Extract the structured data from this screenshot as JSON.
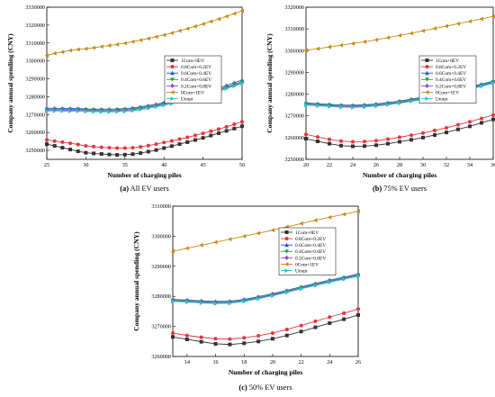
{
  "chart_data": [
    {
      "type": "line",
      "caption_letter": "(a)",
      "caption_text": "All EV users",
      "xlabel": "Number of charging piles",
      "ylabel": "Company annual spending (CNY)",
      "xlim": [
        25,
        50
      ],
      "ylim": [
        3245000,
        3330000
      ],
      "xticks": [
        25,
        30,
        35,
        40,
        45,
        50
      ],
      "yticks": [
        3250000,
        3260000,
        3270000,
        3280000,
        3290000,
        3300000,
        3310000,
        3320000,
        3330000
      ],
      "x": [
        25,
        26,
        27,
        28,
        29,
        30,
        31,
        32,
        33,
        34,
        35,
        36,
        37,
        38,
        39,
        40,
        41,
        42,
        43,
        44,
        45,
        46,
        47,
        48,
        49,
        50
      ],
      "series": [
        {
          "name": "1Com+0EV",
          "color": "#333333",
          "marker": "square",
          "values": [
            3253500,
            3252500,
            3251500,
            3250500,
            3249500,
            3248700,
            3248300,
            3248000,
            3247700,
            3247500,
            3247600,
            3247900,
            3248500,
            3249300,
            3250200,
            3251300,
            3252400,
            3253500,
            3254600,
            3255800,
            3257000,
            3258300,
            3259600,
            3260900,
            3262200,
            3263500
          ]
        },
        {
          "name": "0.8Com+0.2EV",
          "color": "#e8343a",
          "marker": "circle",
          "values": [
            3255900,
            3255200,
            3254600,
            3254000,
            3253300,
            3252500,
            3252100,
            3251700,
            3251500,
            3251300,
            3251300,
            3251500,
            3252000,
            3252700,
            3253500,
            3254400,
            3255300,
            3256300,
            3257300,
            3258400,
            3259500,
            3260700,
            3261900,
            3263200,
            3264600,
            3266000
          ]
        },
        {
          "name": "0.6Com+0.4EV",
          "color": "#2454d8",
          "marker": "triangle-up",
          "values": [
            3273500,
            3273500,
            3273400,
            3273400,
            3273400,
            3273100,
            3273000,
            3273000,
            3273000,
            3273100,
            3273300,
            3273700,
            3274300,
            3275000,
            3275800,
            3276700,
            3277700,
            3278700,
            3279800,
            3281000,
            3282200,
            3283500,
            3284900,
            3286300,
            3287800,
            3289300
          ]
        },
        {
          "name": "0.4Com+0.6EV",
          "color": "#1fa83a",
          "marker": "triangle-down",
          "values": [
            3273000,
            3273000,
            3273000,
            3272900,
            3272900,
            3272700,
            3272600,
            3272500,
            3272500,
            3272600,
            3272800,
            3273200,
            3273800,
            3274500,
            3275300,
            3276200,
            3277100,
            3278100,
            3279200,
            3280300,
            3281500,
            3282800,
            3284100,
            3285500,
            3286900,
            3288400
          ]
        },
        {
          "name": "0.2Com+0.8EV",
          "color": "#9b43c8",
          "marker": "diamond",
          "values": [
            3272500,
            3272500,
            3272500,
            3272400,
            3272400,
            3272200,
            3272100,
            3272000,
            3272000,
            3272100,
            3272300,
            3272700,
            3273300,
            3274000,
            3274800,
            3275700,
            3276600,
            3277600,
            3278700,
            3279800,
            3281000,
            3282300,
            3283600,
            3285000,
            3286400,
            3287900
          ]
        },
        {
          "name": "0Com+1EV",
          "color": "#c88a12",
          "marker": "triangle-left",
          "values": [
            3303000,
            3304200,
            3305000,
            3305800,
            3306400,
            3306800,
            3307300,
            3308000,
            3308600,
            3309200,
            3309900,
            3310700,
            3311600,
            3312500,
            3313500,
            3314500,
            3315600,
            3316800,
            3318000,
            3319300,
            3320600,
            3322000,
            3323400,
            3324900,
            3326400,
            3328000
          ]
        },
        {
          "name": "Unopt",
          "color": "#1ec8d2",
          "marker": "triangle-right",
          "values": [
            3272000,
            3272000,
            3272000,
            3271900,
            3271900,
            3271700,
            3271600,
            3271500,
            3271500,
            3271600,
            3271800,
            3272200,
            3272800,
            3273500,
            3274300,
            3275200,
            3276100,
            3277100,
            3278200,
            3279300,
            3280500,
            3281800,
            3283100,
            3284500,
            3285900,
            3287400
          ]
        }
      ]
    },
    {
      "type": "line",
      "caption_letter": "(b)",
      "caption_text": "75% EV users",
      "xlabel": "Number of charging piles",
      "ylabel": "Company annual spending (CNY)",
      "xlim": [
        20,
        36
      ],
      "ylim": [
        3250000,
        3320000
      ],
      "xticks": [
        20,
        22,
        24,
        26,
        28,
        30,
        32,
        34,
        36
      ],
      "yticks": [
        3250000,
        3260000,
        3270000,
        3280000,
        3290000,
        3300000,
        3310000,
        3320000
      ],
      "x": [
        20,
        21,
        22,
        23,
        24,
        25,
        26,
        27,
        28,
        29,
        30,
        31,
        32,
        33,
        34,
        35,
        36
      ],
      "series": [
        {
          "name": "1Com+0EV",
          "color": "#333333",
          "marker": "square",
          "values": [
            3259500,
            3258300,
            3257200,
            3256300,
            3256000,
            3256100,
            3256500,
            3257200,
            3258100,
            3259000,
            3260000,
            3261200,
            3262400,
            3263800,
            3265200,
            3266800,
            3268400
          ]
        },
        {
          "name": "0.8Com+0.2EV",
          "color": "#e8343a",
          "marker": "circle",
          "values": [
            3261500,
            3260300,
            3259200,
            3258400,
            3258100,
            3258200,
            3258600,
            3259300,
            3260200,
            3261100,
            3262100,
            3263300,
            3264500,
            3265900,
            3267300,
            3268800,
            3270400
          ]
        },
        {
          "name": "0.6Com+0.4EV",
          "color": "#2454d8",
          "marker": "triangle-up",
          "values": [
            3276000,
            3275600,
            3275300,
            3275000,
            3274900,
            3275100,
            3275500,
            3276100,
            3276800,
            3277700,
            3278600,
            3279700,
            3280800,
            3282000,
            3283300,
            3284600,
            3286000
          ]
        },
        {
          "name": "0.4Com+0.6EV",
          "color": "#1fa83a",
          "marker": "triangle-down",
          "values": [
            3275600,
            3275200,
            3274900,
            3274600,
            3274500,
            3274700,
            3275100,
            3275700,
            3276400,
            3277300,
            3278200,
            3279300,
            3280400,
            3281600,
            3282900,
            3284200,
            3285600
          ]
        },
        {
          "name": "0.2Com+0.8EV",
          "color": "#9b43c8",
          "marker": "diamond",
          "values": [
            3275300,
            3274900,
            3274600,
            3274300,
            3274200,
            3274400,
            3274800,
            3275400,
            3276100,
            3277000,
            3277900,
            3279000,
            3280100,
            3281300,
            3282600,
            3283900,
            3285300
          ]
        },
        {
          "name": "0Com+1EV",
          "color": "#c88a12",
          "marker": "triangle-left",
          "values": [
            3300200,
            3300900,
            3301700,
            3302500,
            3303300,
            3304100,
            3305000,
            3306000,
            3307000,
            3308000,
            3309100,
            3310200,
            3311300,
            3312400,
            3313500,
            3314600,
            3315800
          ]
        },
        {
          "name": "Unopt",
          "color": "#1ec8d2",
          "marker": "triangle-right",
          "values": [
            3275000,
            3274600,
            3274300,
            3274000,
            3273900,
            3274100,
            3274500,
            3275100,
            3275800,
            3276700,
            3277600,
            3278700,
            3279800,
            3281000,
            3282300,
            3283600,
            3285000
          ]
        }
      ]
    },
    {
      "type": "line",
      "caption_letter": "(c)",
      "caption_text": "50% EV users",
      "xlabel": "Number of charging piles",
      "ylabel": "Company annual spending (CNY)",
      "xlim": [
        13,
        26
      ],
      "ylim": [
        3260000,
        3310000
      ],
      "xticks": [
        14,
        16,
        18,
        20,
        22,
        24,
        26
      ],
      "yticks": [
        3260000,
        3270000,
        3280000,
        3290000,
        3300000,
        3310000
      ],
      "x": [
        13,
        14,
        15,
        16,
        17,
        18,
        19,
        20,
        21,
        22,
        23,
        24,
        25,
        26
      ],
      "series": [
        {
          "name": "1Com+0EV",
          "color": "#333333",
          "marker": "square",
          "values": [
            3266500,
            3265700,
            3264900,
            3264200,
            3264000,
            3264400,
            3265000,
            3265900,
            3267000,
            3268300,
            3269700,
            3271100,
            3272400,
            3273800
          ]
        },
        {
          "name": "0.8Com+0.2EV",
          "color": "#e8343a",
          "marker": "circle",
          "values": [
            3267800,
            3267000,
            3266400,
            3265900,
            3265800,
            3266200,
            3266900,
            3267800,
            3269000,
            3270300,
            3271700,
            3273100,
            3274400,
            3275800
          ]
        },
        {
          "name": "0.6Com+0.4EV",
          "color": "#2454d8",
          "marker": "triangle-up",
          "values": [
            3279000,
            3278800,
            3278500,
            3278300,
            3278400,
            3279000,
            3279900,
            3280900,
            3282000,
            3283200,
            3284300,
            3285400,
            3286400,
            3287400
          ]
        },
        {
          "name": "0.4Com+0.6EV",
          "color": "#1fa83a",
          "marker": "triangle-down",
          "values": [
            3278700,
            3278500,
            3278200,
            3278000,
            3278100,
            3278700,
            3279600,
            3280600,
            3281700,
            3282900,
            3284000,
            3285100,
            3286100,
            3287100
          ]
        },
        {
          "name": "0.2Com+0.8EV",
          "color": "#9b43c8",
          "marker": "diamond",
          "values": [
            3278500,
            3278300,
            3278000,
            3277800,
            3277900,
            3278500,
            3279400,
            3280400,
            3281500,
            3282700,
            3283800,
            3284900,
            3285900,
            3286900
          ]
        },
        {
          "name": "0Com+1EV",
          "color": "#c88a12",
          "marker": "triangle-left",
          "values": [
            3295000,
            3296000,
            3297000,
            3298000,
            3299000,
            3300000,
            3301000,
            3302000,
            3303100,
            3304200,
            3305300,
            3306300,
            3307300,
            3308300
          ]
        },
        {
          "name": "Unopt",
          "color": "#1ec8d2",
          "marker": "triangle-right",
          "values": [
            3278300,
            3278100,
            3277800,
            3277600,
            3277700,
            3278300,
            3279200,
            3280200,
            3281300,
            3282500,
            3283600,
            3284700,
            3285700,
            3286700
          ]
        }
      ]
    }
  ]
}
